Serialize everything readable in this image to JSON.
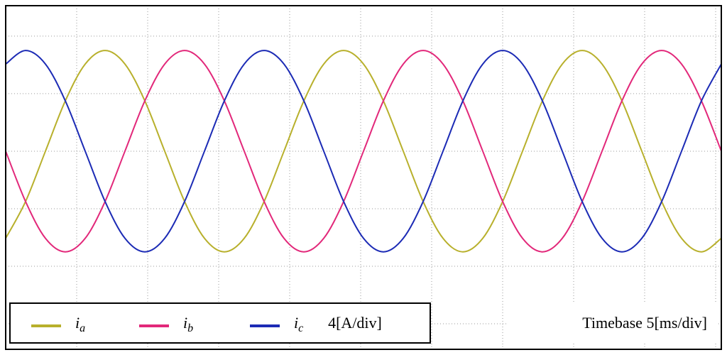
{
  "chart_data": {
    "type": "line",
    "x": [
      0,
      1.4,
      2.8,
      4.2,
      5.6,
      7,
      8.4,
      9.8,
      11.2,
      12.6,
      14,
      15.4,
      16.8,
      18.2,
      19.6,
      21,
      22.4,
      23.8,
      25.2,
      26.6,
      28,
      29.4,
      30.8,
      32.2,
      33.6,
      35,
      36.4,
      37.8,
      39.2,
      40.6,
      42,
      43.4,
      44.8,
      46.2,
      47.6,
      49,
      50.4
    ],
    "series": [
      {
        "name": "ia",
        "color": "#b8b02c",
        "values": [
          -6.06,
          -3.5,
          0,
          3.5,
          6.06,
          7,
          6.06,
          3.5,
          0,
          -3.5,
          -6.06,
          -7,
          -6.06,
          -3.5,
          0,
          3.5,
          6.06,
          7,
          6.06,
          3.5,
          0,
          -3.5,
          -6.06,
          -7,
          -6.06,
          -3.5,
          0,
          3.5,
          6.06,
          7,
          6.06,
          3.5,
          0,
          -3.5,
          -6.06,
          -7,
          -6.06
        ]
      },
      {
        "name": "ib",
        "color": "#e2287a",
        "values": [
          0,
          -3.5,
          -6.06,
          -7,
          -6.06,
          -3.5,
          0,
          3.5,
          6.06,
          7,
          6.06,
          3.5,
          0,
          -3.5,
          -6.06,
          -7,
          -6.06,
          -3.5,
          0,
          3.5,
          6.06,
          7,
          6.06,
          3.5,
          0,
          -3.5,
          -6.06,
          -7,
          -6.06,
          -3.5,
          0,
          3.5,
          6.06,
          7,
          6.06,
          3.5,
          0
        ]
      },
      {
        "name": "ic",
        "color": "#1c2bb5",
        "values": [
          6.06,
          7,
          6.06,
          3.5,
          0,
          -3.5,
          -6.06,
          -7,
          -6.06,
          -3.5,
          0,
          3.5,
          6.06,
          7,
          6.06,
          3.5,
          0,
          -3.5,
          -6.06,
          -7,
          -6.06,
          -3.5,
          0,
          3.5,
          6.06,
          7,
          6.06,
          3.5,
          0,
          -3.5,
          -6.06,
          -7,
          -6.06,
          -3.5,
          0,
          3.5,
          6.06
        ]
      }
    ],
    "xlim": [
      0,
      50.4
    ],
    "xticks": [
      0,
      5,
      10,
      15,
      20,
      25,
      30,
      35,
      40,
      45,
      50
    ],
    "ylim": [
      -13.78,
      10.12
    ],
    "yticks": [
      -12,
      -8,
      -4,
      0,
      4,
      8
    ],
    "grid": true,
    "scale_label": "4[A/div]",
    "timebase_label": "Timebase 5[ms/div]"
  }
}
